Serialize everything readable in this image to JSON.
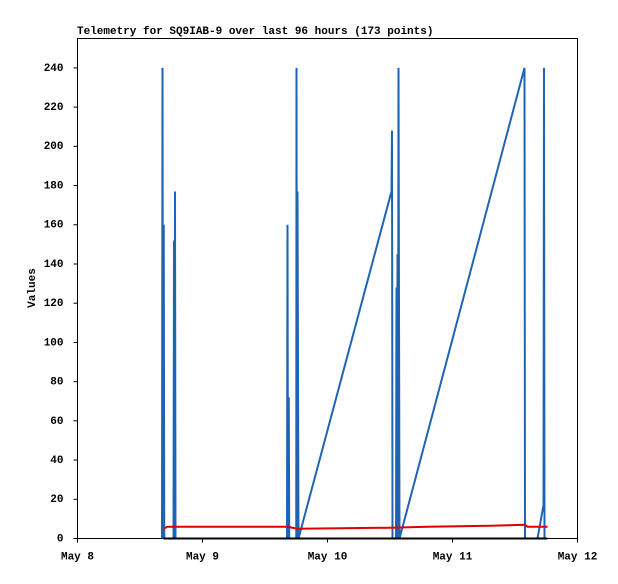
{
  "chart_data": {
    "type": "line",
    "title": "Telemetry for SQ9IAB-9 over last 96 hours (173 points)",
    "y_label": "Values",
    "xlim": [
      8,
      12
    ],
    "xticks": [
      {
        "value": 8,
        "label": "May 8"
      },
      {
        "value": 9,
        "label": "May 9"
      },
      {
        "value": 10,
        "label": "May 10"
      },
      {
        "value": 11,
        "label": "May 11"
      },
      {
        "value": 12,
        "label": "May 12"
      }
    ],
    "ylim": [
      0,
      255
    ],
    "yticks": [
      0,
      20,
      40,
      60,
      80,
      100,
      120,
      140,
      160,
      180,
      200,
      220,
      240
    ],
    "series": [
      {
        "color": "#1e64b4",
        "x": [
          8.676,
          8.68,
          8.684,
          8.69,
          8.694,
          8.768,
          8.772,
          8.776,
          8.78,
          8.784,
          9.676,
          9.68,
          9.684,
          9.69,
          9.694,
          9.75,
          9.752,
          9.756,
          9.76,
          9.768,
          10.512,
          10.516,
          10.52,
          10.548,
          10.552,
          10.556,
          10.56,
          10.564,
          10.568,
          10.576,
          11.576,
          11.58,
          11.68,
          11.728,
          11.732,
          11.736
        ],
        "values": [
          0,
          240,
          0,
          160,
          0,
          0,
          152,
          0,
          177,
          0,
          0,
          160,
          0,
          72,
          0,
          0,
          240,
          0,
          177,
          0,
          177,
          208,
          0,
          0,
          128,
          0,
          145,
          0,
          240,
          0,
          240,
          0,
          0,
          17,
          240,
          0
        ]
      },
      {
        "color": "#e00000",
        "x": [
          8.688,
          8.72,
          9.68,
          9.76,
          10.5,
          10.8,
          11.3,
          11.576,
          11.6,
          11.76
        ],
        "values": [
          5,
          6,
          6,
          5,
          5.5,
          6,
          6.5,
          7,
          6,
          6
        ]
      },
      {
        "color": "#000000",
        "x": [
          8.688,
          11.76
        ],
        "values": [
          0,
          0
        ]
      }
    ]
  }
}
